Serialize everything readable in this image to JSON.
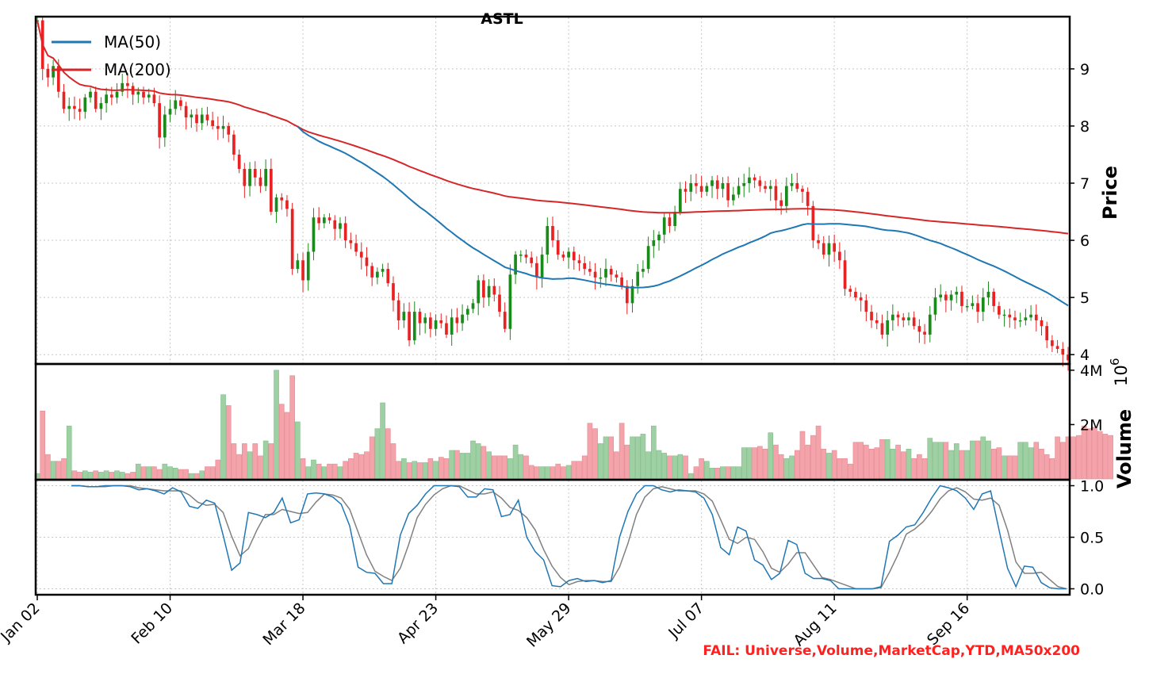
{
  "chart_data": {
    "type": "candlestick",
    "title": "ASTL",
    "x_tick_labels": [
      "Jan 02",
      "Feb 10",
      "Mar 18",
      "Apr 23",
      "May 29",
      "Jul 07",
      "Aug 11",
      "Sep 16"
    ],
    "panels": [
      {
        "name": "price",
        "ylabel": "Price",
        "ylim": [
          3.85,
          9.9
        ],
        "yticks": [
          4,
          5,
          6,
          7,
          8,
          9
        ],
        "grid": true,
        "legend": {
          "placement": "top-left",
          "entries": [
            "MA(50)",
            "MA(200)"
          ]
        },
        "close": [
          9.85,
          9.0,
          8.85,
          9.05,
          8.6,
          8.3,
          8.35,
          8.3,
          8.25,
          8.5,
          8.6,
          8.3,
          8.4,
          8.55,
          8.5,
          8.6,
          8.75,
          8.7,
          8.55,
          8.6,
          8.5,
          8.55,
          8.4,
          7.8,
          8.2,
          8.3,
          8.45,
          8.35,
          8.15,
          8.2,
          8.05,
          8.2,
          8.1,
          8.0,
          7.95,
          8.0,
          7.85,
          7.5,
          7.25,
          6.95,
          7.25,
          7.1,
          6.95,
          7.25,
          6.5,
          6.75,
          6.7,
          6.55,
          5.5,
          5.65,
          5.3,
          5.8,
          6.4,
          6.3,
          6.4,
          6.35,
          6.2,
          6.3,
          6.0,
          5.95,
          5.8,
          5.7,
          5.55,
          5.35,
          5.45,
          5.5,
          5.25,
          4.95,
          4.6,
          4.75,
          4.25,
          4.75,
          4.55,
          4.65,
          4.45,
          4.6,
          4.55,
          4.35,
          4.65,
          4.55,
          4.7,
          4.8,
          4.9,
          5.3,
          5.0,
          5.2,
          5.05,
          4.75,
          4.45,
          5.4,
          5.75,
          5.75,
          5.7,
          5.6,
          5.35,
          5.75,
          6.25,
          6.0,
          5.75,
          5.7,
          5.8,
          5.65,
          5.6,
          5.5,
          5.45,
          5.35,
          5.35,
          5.5,
          5.4,
          5.35,
          5.2,
          4.9,
          5.2,
          5.45,
          5.5,
          5.9,
          6.0,
          6.1,
          6.4,
          6.25,
          6.5,
          6.9,
          6.85,
          7.0,
          6.95,
          6.85,
          6.95,
          7.05,
          6.9,
          7.0,
          6.7,
          6.8,
          6.95,
          7.0,
          7.1,
          7.05,
          6.95,
          6.9,
          6.95,
          6.7,
          6.6,
          6.95,
          7.0,
          6.9,
          6.85,
          6.6,
          6.0,
          5.95,
          5.75,
          5.95,
          5.8,
          5.65,
          5.15,
          5.1,
          5.0,
          4.95,
          4.75,
          4.6,
          4.55,
          4.35,
          4.6,
          4.7,
          4.65,
          4.6,
          4.65,
          4.5,
          4.4,
          4.35,
          4.7,
          5.0,
          5.05,
          4.95,
          5.05,
          5.1,
          4.85,
          4.85,
          4.9,
          4.75,
          5.0,
          5.1,
          4.85,
          4.7,
          4.7,
          4.65,
          4.6,
          4.6,
          4.65,
          4.7,
          4.6,
          4.5,
          4.25,
          4.15,
          4.1,
          4.0,
          3.9
        ]
      },
      {
        "name": "volume",
        "ylabel": "Volume",
        "scale_label": "10^6",
        "yticks": [
          "2M",
          "4M"
        ],
        "ylim": [
          0,
          4.2
        ],
        "values": [
          0.2,
          2.5,
          0.9,
          0.65,
          0.65,
          0.75,
          1.95,
          0.3,
          0.25,
          0.3,
          0.25,
          0.3,
          0.25,
          0.3,
          0.25,
          0.3,
          0.25,
          0.2,
          0.25,
          0.55,
          0.45,
          0.45,
          0.45,
          0.35,
          0.55,
          0.45,
          0.4,
          0.35,
          0.35,
          0.2,
          0.2,
          0.3,
          0.45,
          0.45,
          0.7,
          3.1,
          2.7,
          1.3,
          0.9,
          1.3,
          1.0,
          1.3,
          0.85,
          1.4,
          1.3,
          4.0,
          2.75,
          2.45,
          3.8,
          2.1,
          0.75,
          0.45,
          0.7,
          0.55,
          0.45,
          0.55,
          0.55,
          0.45,
          0.65,
          0.75,
          0.95,
          0.9,
          1.0,
          1.55,
          1.85,
          2.8,
          1.85,
          1.3,
          0.65,
          0.75,
          0.6,
          0.65,
          0.6,
          0.6,
          0.75,
          0.65,
          0.8,
          0.75,
          1.05,
          1.05,
          0.95,
          0.95,
          1.4,
          1.3,
          1.2,
          1.0,
          0.85,
          0.85,
          0.85,
          0.75,
          1.25,
          0.9,
          0.85,
          0.5,
          0.45,
          0.45,
          0.45,
          0.45,
          0.55,
          0.45,
          0.5,
          0.65,
          0.65,
          0.85,
          2.05,
          1.85,
          1.3,
          1.55,
          1.55,
          1.0,
          2.05,
          1.25,
          1.55,
          1.55,
          1.65,
          1.0,
          1.95,
          1.05,
          0.95,
          0.85,
          0.85,
          0.9,
          0.85,
          0.2,
          0.45,
          0.75,
          0.65,
          0.4,
          0.4,
          0.45,
          0.45,
          0.45,
          0.45,
          1.15,
          1.15,
          1.15,
          1.2,
          1.1,
          1.7,
          1.25,
          0.9,
          0.75,
          0.85,
          1.05,
          1.75,
          1.25,
          1.6,
          1.95,
          1.1,
          0.95,
          1.05,
          0.75,
          0.75,
          0.55,
          1.35,
          1.35,
          1.25,
          1.1,
          1.15,
          1.45,
          1.45,
          1.1,
          1.25,
          1.0,
          1.1,
          0.75,
          0.9,
          0.75,
          1.5,
          1.35,
          1.35,
          1.35,
          1.05,
          1.3,
          1.05,
          1.05,
          1.4,
          1.4,
          1.55,
          1.4,
          1.1,
          1.15,
          0.85,
          0.85,
          0.85,
          1.35,
          1.35,
          1.15,
          1.35,
          1.1,
          0.9,
          0.75,
          1.55,
          1.35,
          1.55,
          1.55,
          1.6,
          1.95,
          1.85,
          1.9,
          1.75,
          1.65,
          1.6
        ]
      },
      {
        "name": "stochastic",
        "yticks": [
          0.0,
          0.5,
          1.0
        ],
        "ylim": [
          -0.05,
          1.05
        ],
        "series": [
          {
            "color": "#1f77b4",
            "values": [
              1.0,
              1.0,
              0.99,
              0.99,
              1.0,
              1.0,
              1.0,
              0.99,
              0.96,
              0.97,
              0.95,
              0.92,
              0.98,
              0.94,
              0.8,
              0.78,
              0.86,
              0.83,
              0.52,
              0.18,
              0.25,
              0.74,
              0.72,
              0.69,
              0.74,
              0.88,
              0.64,
              0.67,
              0.92,
              0.93,
              0.92,
              0.89,
              0.82,
              0.61,
              0.21,
              0.16,
              0.15,
              0.05,
              0.05,
              0.52,
              0.73,
              0.81,
              0.92,
              1.0,
              1.0,
              1.0,
              0.99,
              0.89,
              0.89,
              0.97,
              0.96,
              0.7,
              0.72,
              0.86,
              0.5,
              0.36,
              0.28,
              0.03,
              0.02,
              0.08,
              0.1,
              0.07,
              0.08,
              0.06,
              0.08,
              0.5,
              0.75,
              0.92,
              1.0,
              1.0,
              0.96,
              0.94,
              0.96,
              0.95,
              0.94,
              0.88,
              0.72,
              0.4,
              0.33,
              0.6,
              0.56,
              0.28,
              0.23,
              0.09,
              0.15,
              0.47,
              0.43,
              0.15,
              0.1,
              0.1,
              0.08,
              0.0,
              0.0,
              0.0,
              0.0,
              0.0,
              0.02,
              0.46,
              0.52,
              0.6,
              0.62,
              0.74,
              0.88,
              1.0,
              0.98,
              0.95,
              0.88,
              0.77,
              0.92,
              0.95,
              0.57,
              0.2,
              0.02,
              0.22,
              0.21,
              0.06,
              0.01,
              0.0,
              0.0
            ]
          },
          {
            "color": "#808080",
            "values": [
              1.0,
              1.0,
              0.99,
              0.99,
              0.99,
              1.0,
              1.0,
              1.0,
              0.98,
              0.97,
              0.96,
              0.95,
              0.95,
              0.95,
              0.91,
              0.84,
              0.81,
              0.82,
              0.74,
              0.51,
              0.32,
              0.39,
              0.57,
              0.72,
              0.72,
              0.77,
              0.75,
              0.73,
              0.74,
              0.84,
              0.92,
              0.91,
              0.88,
              0.77,
              0.55,
              0.33,
              0.17,
              0.12,
              0.08,
              0.2,
              0.43,
              0.69,
              0.82,
              0.91,
              0.97,
              1.0,
              1.0,
              0.96,
              0.92,
              0.92,
              0.94,
              0.88,
              0.79,
              0.76,
              0.69,
              0.57,
              0.38,
              0.22,
              0.11,
              0.04,
              0.07,
              0.08,
              0.08,
              0.07,
              0.07,
              0.21,
              0.44,
              0.72,
              0.89,
              0.97,
              0.99,
              0.97,
              0.95,
              0.95,
              0.95,
              0.92,
              0.85,
              0.67,
              0.48,
              0.44,
              0.5,
              0.48,
              0.36,
              0.2,
              0.16,
              0.24,
              0.35,
              0.35,
              0.23,
              0.11,
              0.09,
              0.06,
              0.03,
              0.0,
              0.0,
              0.0,
              0.01,
              0.16,
              0.33,
              0.53,
              0.58,
              0.65,
              0.75,
              0.87,
              0.95,
              0.98,
              0.94,
              0.87,
              0.86,
              0.88,
              0.81,
              0.57,
              0.26,
              0.15,
              0.15,
              0.16,
              0.09,
              0.02,
              0.0
            ]
          }
        ]
      }
    ]
  },
  "footer": {
    "fail_text": "FAIL: Universe,Volume,MarketCap,YTD,MA50x200"
  },
  "colors": {
    "up": "#1a8a1a",
    "down": "#e82222",
    "ma50": "#1f77b4",
    "ma200": "#d62728",
    "vol_up": "#9fd0a4",
    "vol_down": "#f4a3aa"
  }
}
